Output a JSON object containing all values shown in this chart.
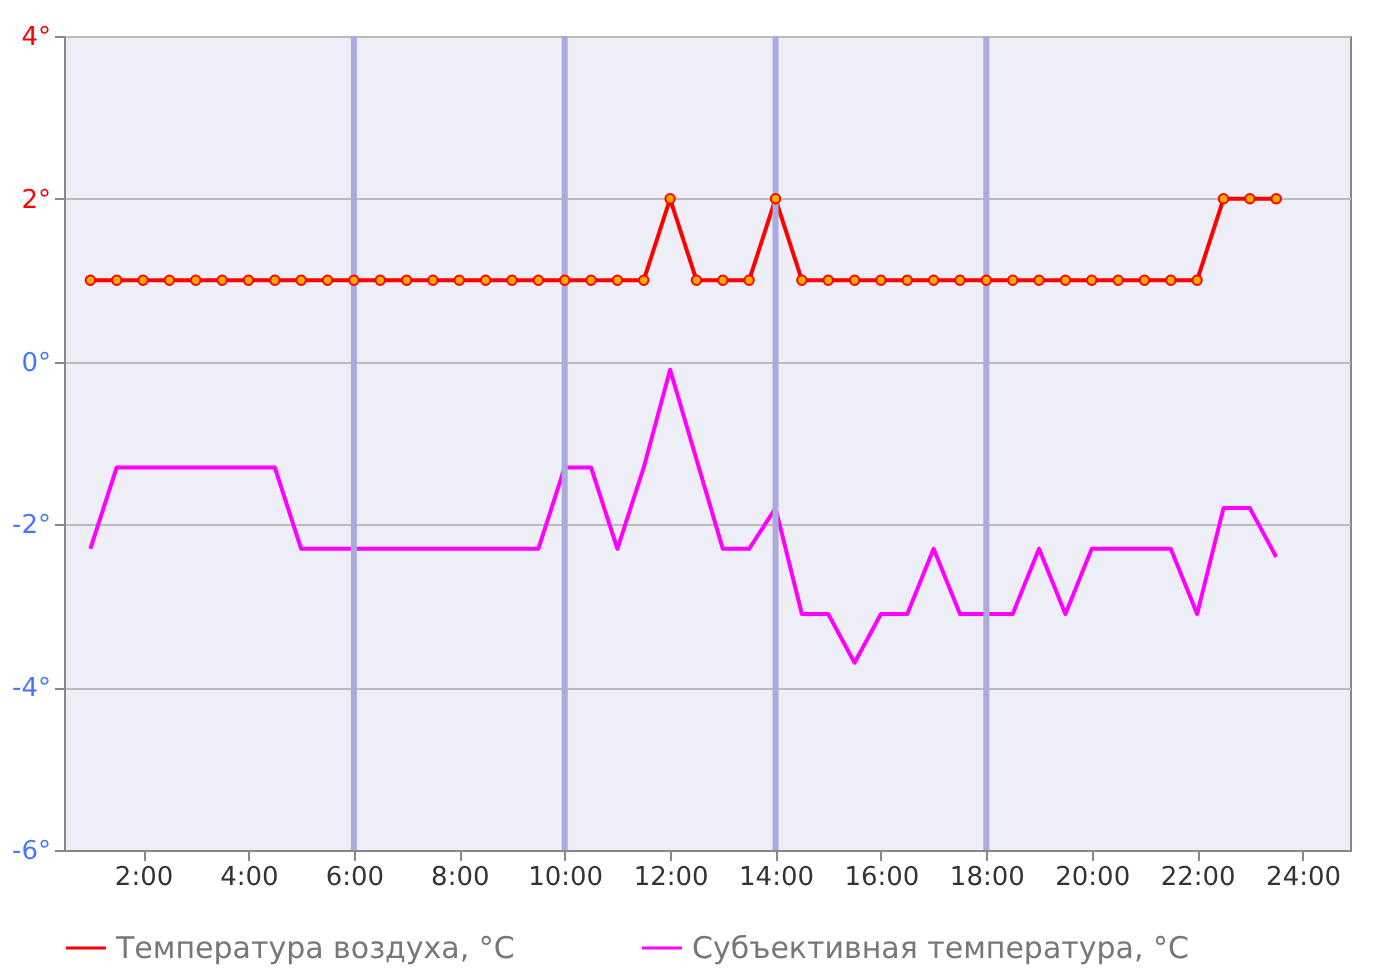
{
  "chart_data": {
    "type": "line",
    "x": [
      1.0,
      1.5,
      2.0,
      2.5,
      3.0,
      3.5,
      4.0,
      4.5,
      5.0,
      5.5,
      6.0,
      6.5,
      7.0,
      7.5,
      8.0,
      8.5,
      9.0,
      9.5,
      10.0,
      10.5,
      11.0,
      11.5,
      12.0,
      12.5,
      13.0,
      13.5,
      14.0,
      14.5,
      15.0,
      15.5,
      16.0,
      16.5,
      17.0,
      17.5,
      18.0,
      18.5,
      19.0,
      19.5,
      20.0,
      20.5,
      21.0,
      21.5,
      22.0,
      22.5,
      23.0,
      23.5
    ],
    "series": [
      {
        "name": "Температура воздуха, °C",
        "color": "#ff0000",
        "marker": "circle",
        "values": [
          1,
          1,
          1,
          1,
          1,
          1,
          1,
          1,
          1,
          1,
          1,
          1,
          1,
          1,
          1,
          1,
          1,
          1,
          1,
          1,
          1,
          1,
          2,
          1,
          1,
          1,
          2,
          1,
          1,
          1,
          1,
          1,
          1,
          1,
          1,
          1,
          1,
          1,
          1,
          1,
          1,
          1,
          1,
          2,
          2,
          2
        ]
      },
      {
        "name": "Субъективная температура, °C",
        "color": "#ff00ff",
        "marker": "none",
        "values": [
          -2.3,
          -1.3,
          -1.3,
          -1.3,
          -1.3,
          -1.3,
          -1.3,
          -1.3,
          -2.3,
          -2.3,
          -2.3,
          -2.3,
          -2.3,
          -2.3,
          -2.3,
          -2.3,
          -2.3,
          -2.3,
          -1.3,
          -1.3,
          -2.3,
          -1.3,
          -0.1,
          -1.2,
          -2.3,
          -2.3,
          -1.8,
          -3.1,
          -3.1,
          -3.7,
          -3.1,
          -3.1,
          -2.3,
          -3.1,
          -3.1,
          -3.1,
          -2.3,
          -3.1,
          -2.3,
          -2.3,
          -2.3,
          -2.3,
          -3.1,
          -1.8,
          -1.8,
          -2.4
        ]
      }
    ],
    "xlim": [
      0.5,
      24.9
    ],
    "xticks": [
      {
        "value": 2,
        "label": "2:00"
      },
      {
        "value": 4,
        "label": "4:00"
      },
      {
        "value": 6,
        "label": "6:00"
      },
      {
        "value": 8,
        "label": "8:00"
      },
      {
        "value": 10,
        "label": "10:00"
      },
      {
        "value": 12,
        "label": "12:00"
      },
      {
        "value": 14,
        "label": "14:00"
      },
      {
        "value": 16,
        "label": "16:00"
      },
      {
        "value": 18,
        "label": "18:00"
      },
      {
        "value": 20,
        "label": "20:00"
      },
      {
        "value": 22,
        "label": "22:00"
      },
      {
        "value": 24,
        "label": "24:00"
      }
    ],
    "ylim": [
      -6,
      4
    ],
    "yticks": [
      {
        "value": -6,
        "label": "-6°"
      },
      {
        "value": -4,
        "label": "-4°"
      },
      {
        "value": -2,
        "label": "-2°"
      },
      {
        "value": 0,
        "label": "0°"
      },
      {
        "value": 2,
        "label": "2°"
      },
      {
        "value": 4,
        "label": "4°"
      }
    ],
    "ref_lines": [
      {
        "axis": "x",
        "value": 6,
        "color": "#aaaadd"
      },
      {
        "axis": "x",
        "value": 10,
        "color": "#aaaadd"
      },
      {
        "axis": "x",
        "value": 14,
        "color": "#aaaadd"
      },
      {
        "axis": "x",
        "value": 18,
        "color": "#aaaadd"
      }
    ],
    "grid": "y",
    "legend": "bottom",
    "line_style": "solid"
  }
}
